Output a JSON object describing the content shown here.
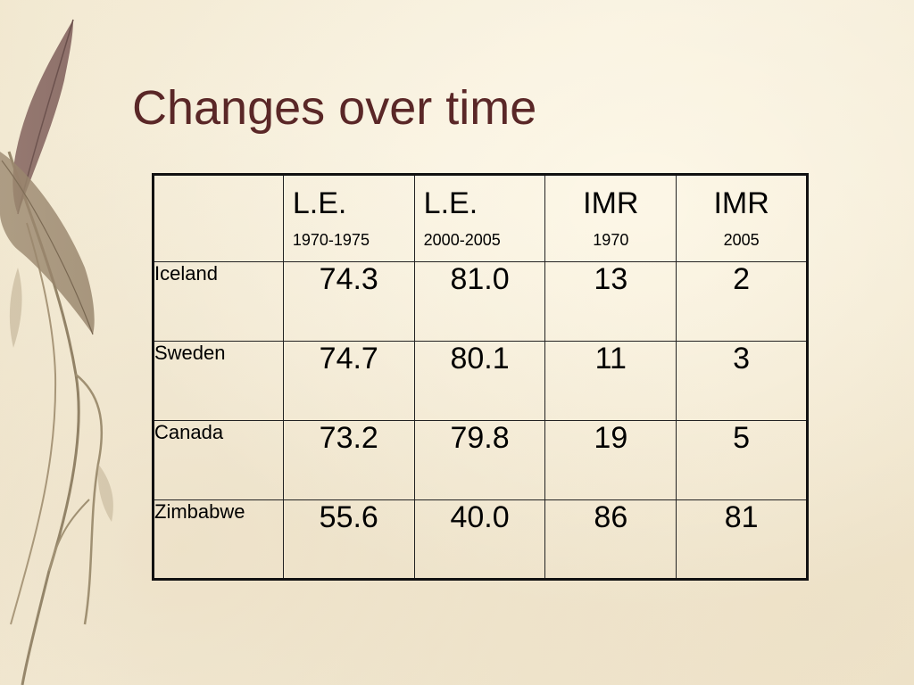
{
  "slide": {
    "title": "Changes over time"
  },
  "table": {
    "headers": [
      {
        "main": "",
        "sub": ""
      },
      {
        "main": "L.E.",
        "sub": "1970-1975"
      },
      {
        "main": "L.E.",
        "sub": "2000-2005"
      },
      {
        "main": "IMR",
        "sub": "1970"
      },
      {
        "main": "IMR",
        "sub": "2005"
      }
    ],
    "rows": [
      {
        "country": "Iceland",
        "values": [
          "74.3",
          "81.0",
          "13",
          "2"
        ]
      },
      {
        "country": "Sweden",
        "values": [
          "74.7",
          "80.1",
          "11",
          "3"
        ]
      },
      {
        "country": "Canada",
        "values": [
          "73.2",
          "79.8",
          "19",
          "5"
        ]
      },
      {
        "country": "Zimbabwe",
        "values": [
          "55.6",
          "40.0",
          "86",
          "81"
        ]
      }
    ]
  },
  "colors": {
    "title": "#5a2727",
    "background": "#f4ecd8",
    "border": "#111111"
  }
}
